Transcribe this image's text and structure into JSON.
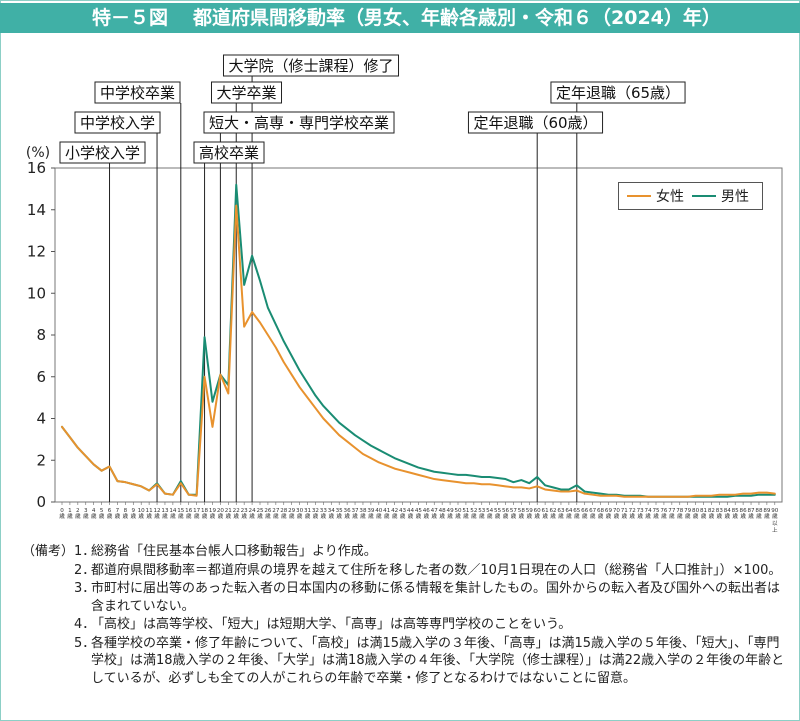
{
  "header": {
    "figure_number": "特－５図",
    "title": "都道府県間移動率（男女、年齢各歳別・令和６（2024）年）"
  },
  "colors": {
    "title_bar": "#40b0a6",
    "female": "#e8922e",
    "male": "#1a8c73"
  },
  "chart_data": {
    "type": "line",
    "categories": [
      "0歳",
      "1歳",
      "2歳",
      "3歳",
      "4歳",
      "5歳",
      "6歳",
      "7歳",
      "8歳",
      "9歳",
      "10歳",
      "11歳",
      "12歳",
      "13歳",
      "14歳",
      "15歳",
      "16歳",
      "17歳",
      "18歳",
      "19歳",
      "20歳",
      "21歳",
      "22歳",
      "23歳",
      "24歳",
      "25歳",
      "26歳",
      "27歳",
      "28歳",
      "29歳",
      "30歳",
      "31歳",
      "32歳",
      "33歳",
      "34歳",
      "35歳",
      "36歳",
      "37歳",
      "38歳",
      "39歳",
      "40歳",
      "41歳",
      "42歳",
      "43歳",
      "44歳",
      "45歳",
      "46歳",
      "47歳",
      "48歳",
      "49歳",
      "50歳",
      "51歳",
      "52歳",
      "53歳",
      "54歳",
      "55歳",
      "56歳",
      "57歳",
      "58歳",
      "59歳",
      "60歳",
      "61歳",
      "62歳",
      "63歳",
      "64歳",
      "65歳",
      "66歳",
      "67歳",
      "68歳",
      "69歳",
      "70歳",
      "71歳",
      "72歳",
      "73歳",
      "74歳",
      "75歳",
      "76歳",
      "77歳",
      "78歳",
      "79歳",
      "80歳",
      "81歳",
      "82歳",
      "83歳",
      "84歳",
      "85歳",
      "86歳",
      "87歳",
      "88歳",
      "89歳",
      "90歳以上"
    ],
    "series": [
      {
        "name": "女性",
        "color": "#e8922e",
        "values": [
          3.6,
          3.1,
          2.6,
          2.2,
          1.8,
          1.5,
          1.7,
          1.0,
          0.95,
          0.85,
          0.75,
          0.55,
          0.85,
          0.4,
          0.35,
          0.9,
          0.35,
          0.3,
          6.0,
          3.6,
          6.1,
          5.2,
          14.2,
          8.4,
          9.1,
          8.6,
          8.0,
          7.4,
          6.7,
          6.1,
          5.5,
          5.0,
          4.5,
          4.0,
          3.6,
          3.2,
          2.9,
          2.6,
          2.3,
          2.1,
          1.9,
          1.75,
          1.6,
          1.5,
          1.4,
          1.3,
          1.2,
          1.1,
          1.05,
          1.0,
          0.95,
          0.9,
          0.9,
          0.85,
          0.85,
          0.8,
          0.75,
          0.7,
          0.7,
          0.65,
          0.75,
          0.6,
          0.55,
          0.5,
          0.5,
          0.55,
          0.4,
          0.35,
          0.3,
          0.3,
          0.3,
          0.25,
          0.25,
          0.25,
          0.25,
          0.25,
          0.25,
          0.25,
          0.25,
          0.25,
          0.3,
          0.3,
          0.3,
          0.35,
          0.35,
          0.35,
          0.4,
          0.4,
          0.45,
          0.45,
          0.4
        ]
      },
      {
        "name": "男性",
        "color": "#1a8c73",
        "values": [
          3.6,
          3.1,
          2.6,
          2.2,
          1.8,
          1.5,
          1.7,
          1.0,
          0.95,
          0.85,
          0.75,
          0.55,
          0.9,
          0.4,
          0.35,
          1.0,
          0.35,
          0.35,
          7.9,
          4.8,
          6.1,
          5.6,
          15.2,
          10.4,
          11.8,
          10.6,
          9.3,
          8.5,
          7.7,
          7.0,
          6.3,
          5.7,
          5.1,
          4.6,
          4.2,
          3.8,
          3.5,
          3.2,
          2.95,
          2.7,
          2.5,
          2.3,
          2.1,
          1.95,
          1.8,
          1.65,
          1.55,
          1.45,
          1.4,
          1.35,
          1.3,
          1.3,
          1.25,
          1.2,
          1.2,
          1.15,
          1.1,
          0.95,
          1.05,
          0.9,
          1.2,
          0.8,
          0.7,
          0.6,
          0.6,
          0.8,
          0.5,
          0.45,
          0.4,
          0.35,
          0.35,
          0.3,
          0.3,
          0.3,
          0.25,
          0.25,
          0.25,
          0.25,
          0.25,
          0.25,
          0.25,
          0.25,
          0.25,
          0.25,
          0.25,
          0.3,
          0.3,
          0.3,
          0.35,
          0.35,
          0.35
        ]
      }
    ],
    "ylabel": "(%)",
    "ylim": [
      0,
      16
    ],
    "yticks": [
      0,
      2,
      4,
      6,
      8,
      10,
      12,
      14,
      16
    ],
    "grid": false,
    "legend_position": "top-right",
    "annotations": [
      {
        "label": "小学校入学",
        "x": 6
      },
      {
        "label": "中学校入学",
        "x": 12
      },
      {
        "label": "中学校卒業",
        "x": 15
      },
      {
        "label": "高校卒業",
        "x": 18
      },
      {
        "label": "短大・高専・専門学校卒業",
        "x": 20
      },
      {
        "label": "大学卒業",
        "x": 22
      },
      {
        "label": "大学院（修士課程）修了",
        "x": 24
      },
      {
        "label": "定年退職（60歳）",
        "x": 60
      },
      {
        "label": "定年退職（65歳）",
        "x": 65
      }
    ]
  },
  "notes": {
    "label": "（備考）",
    "items": [
      {
        "num": "1．",
        "text": "総務省「住民基本台帳人口移動報告」より作成。"
      },
      {
        "num": "2．",
        "text": "都道府県間移動率＝都道府県の境界を越えて住所を移した者の数／10月1日現在の人口（総務省「人口推計」）×100。"
      },
      {
        "num": "3．",
        "text": "市町村に届出等のあった転入者の日本国内の移動に係る情報を集計したもの。国外からの転入者及び国外への転出者は含まれていない。"
      },
      {
        "num": "4．",
        "text": "「高校」は高等学校、「短大」は短期大学、「高専」は高等専門学校のことをいう。"
      },
      {
        "num": "5．",
        "text": "各種学校の卒業・修了年齢について、「高校」は満15歳入学の３年後、「高専」は満15歳入学の５年後、「短大」、「専門学校」は満18歳入学の２年後、「大学」は満18歳入学の４年後、「大学院（修士課程）」は満22歳入学の２年後の年齢としているが、必ずしも全ての人がこれらの年齢で卒業・修了となるわけではないことに留意。"
      }
    ]
  }
}
